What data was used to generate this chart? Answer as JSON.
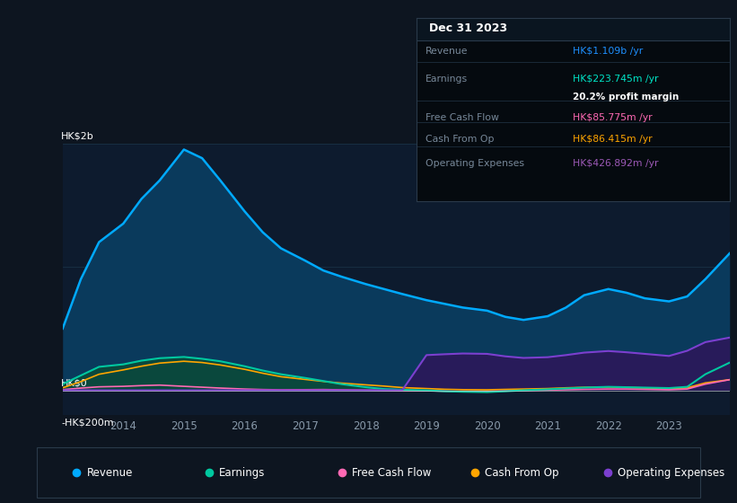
{
  "bg_color": "#0d1520",
  "plot_bg_color": "#0d1b2e",
  "grid_color": "#1e3a50",
  "title_box": {
    "date": "Dec 31 2023",
    "rows": [
      {
        "label": "Revenue",
        "value": "HK$1.109b",
        "value_color": "#1e90ff",
        "suffix": " /yr",
        "extra": null
      },
      {
        "label": "Earnings",
        "value": "HK$223.745m",
        "value_color": "#00e5c8",
        "suffix": " /yr",
        "extra": "20.2% profit margin"
      },
      {
        "label": "Free Cash Flow",
        "value": "HK$85.775m",
        "value_color": "#ff69b4",
        "suffix": " /yr",
        "extra": null
      },
      {
        "label": "Cash From Op",
        "value": "HK$86.415m",
        "value_color": "#ffa500",
        "suffix": " /yr",
        "extra": null
      },
      {
        "label": "Operating Expenses",
        "value": "HK$426.892m",
        "value_color": "#9b59b6",
        "suffix": " /yr",
        "extra": null
      }
    ]
  },
  "years": [
    2013.0,
    2013.3,
    2013.6,
    2014.0,
    2014.3,
    2014.6,
    2015.0,
    2015.3,
    2015.6,
    2016.0,
    2016.3,
    2016.6,
    2017.0,
    2017.3,
    2017.6,
    2018.0,
    2018.3,
    2018.6,
    2019.0,
    2019.3,
    2019.6,
    2020.0,
    2020.3,
    2020.6,
    2021.0,
    2021.3,
    2021.6,
    2022.0,
    2022.3,
    2022.6,
    2023.0,
    2023.3,
    2023.6,
    2024.0
  ],
  "revenue": [
    500,
    900,
    1200,
    1350,
    1550,
    1700,
    1950,
    1880,
    1700,
    1450,
    1280,
    1150,
    1050,
    970,
    920,
    860,
    820,
    780,
    730,
    700,
    670,
    645,
    595,
    570,
    600,
    670,
    770,
    820,
    790,
    745,
    720,
    760,
    900,
    1109
  ],
  "earnings": [
    50,
    120,
    190,
    210,
    240,
    260,
    270,
    255,
    235,
    195,
    160,
    130,
    100,
    75,
    50,
    25,
    10,
    4,
    0,
    -8,
    -12,
    -15,
    -8,
    0,
    8,
    15,
    22,
    28,
    25,
    22,
    18,
    28,
    130,
    224
  ],
  "free_cash_flow": [
    5,
    18,
    28,
    32,
    38,
    42,
    32,
    25,
    18,
    10,
    6,
    4,
    5,
    6,
    4,
    2,
    0,
    -2,
    -4,
    -8,
    -12,
    -10,
    -6,
    -2,
    2,
    5,
    8,
    10,
    10,
    8,
    5,
    10,
    50,
    86
  ],
  "cash_from_op": [
    20,
    70,
    130,
    165,
    195,
    220,
    235,
    225,
    205,
    170,
    138,
    110,
    88,
    72,
    58,
    44,
    34,
    22,
    14,
    8,
    5,
    4,
    7,
    10,
    14,
    20,
    24,
    26,
    23,
    19,
    14,
    20,
    60,
    86
  ],
  "operating_expenses": [
    0,
    0,
    0,
    0,
    0,
    0,
    0,
    0,
    0,
    0,
    0,
    0,
    0,
    0,
    0,
    0,
    0,
    0,
    285,
    292,
    298,
    295,
    275,
    262,
    268,
    285,
    305,
    318,
    308,
    295,
    278,
    320,
    390,
    427
  ],
  "ylim": [
    -200,
    2000
  ],
  "xtick_years": [
    2014,
    2015,
    2016,
    2017,
    2018,
    2019,
    2020,
    2021,
    2022,
    2023
  ],
  "revenue_color": "#00aaff",
  "revenue_fill_color": "#0a3a5c",
  "earnings_color": "#00c8a0",
  "earnings_fill_color": "#0a4a3a",
  "free_cash_flow_color": "#ff69b4",
  "cash_from_op_color": "#ffa500",
  "operating_expenses_color": "#7b3fcf",
  "operating_expenses_fill_color": "#2a1a5a",
  "legend_items": [
    "Revenue",
    "Earnings",
    "Free Cash Flow",
    "Cash From Op",
    "Operating Expenses"
  ],
  "legend_colors": [
    "#00aaff",
    "#00c8a0",
    "#ff69b4",
    "#ffa500",
    "#7b3fcf"
  ]
}
